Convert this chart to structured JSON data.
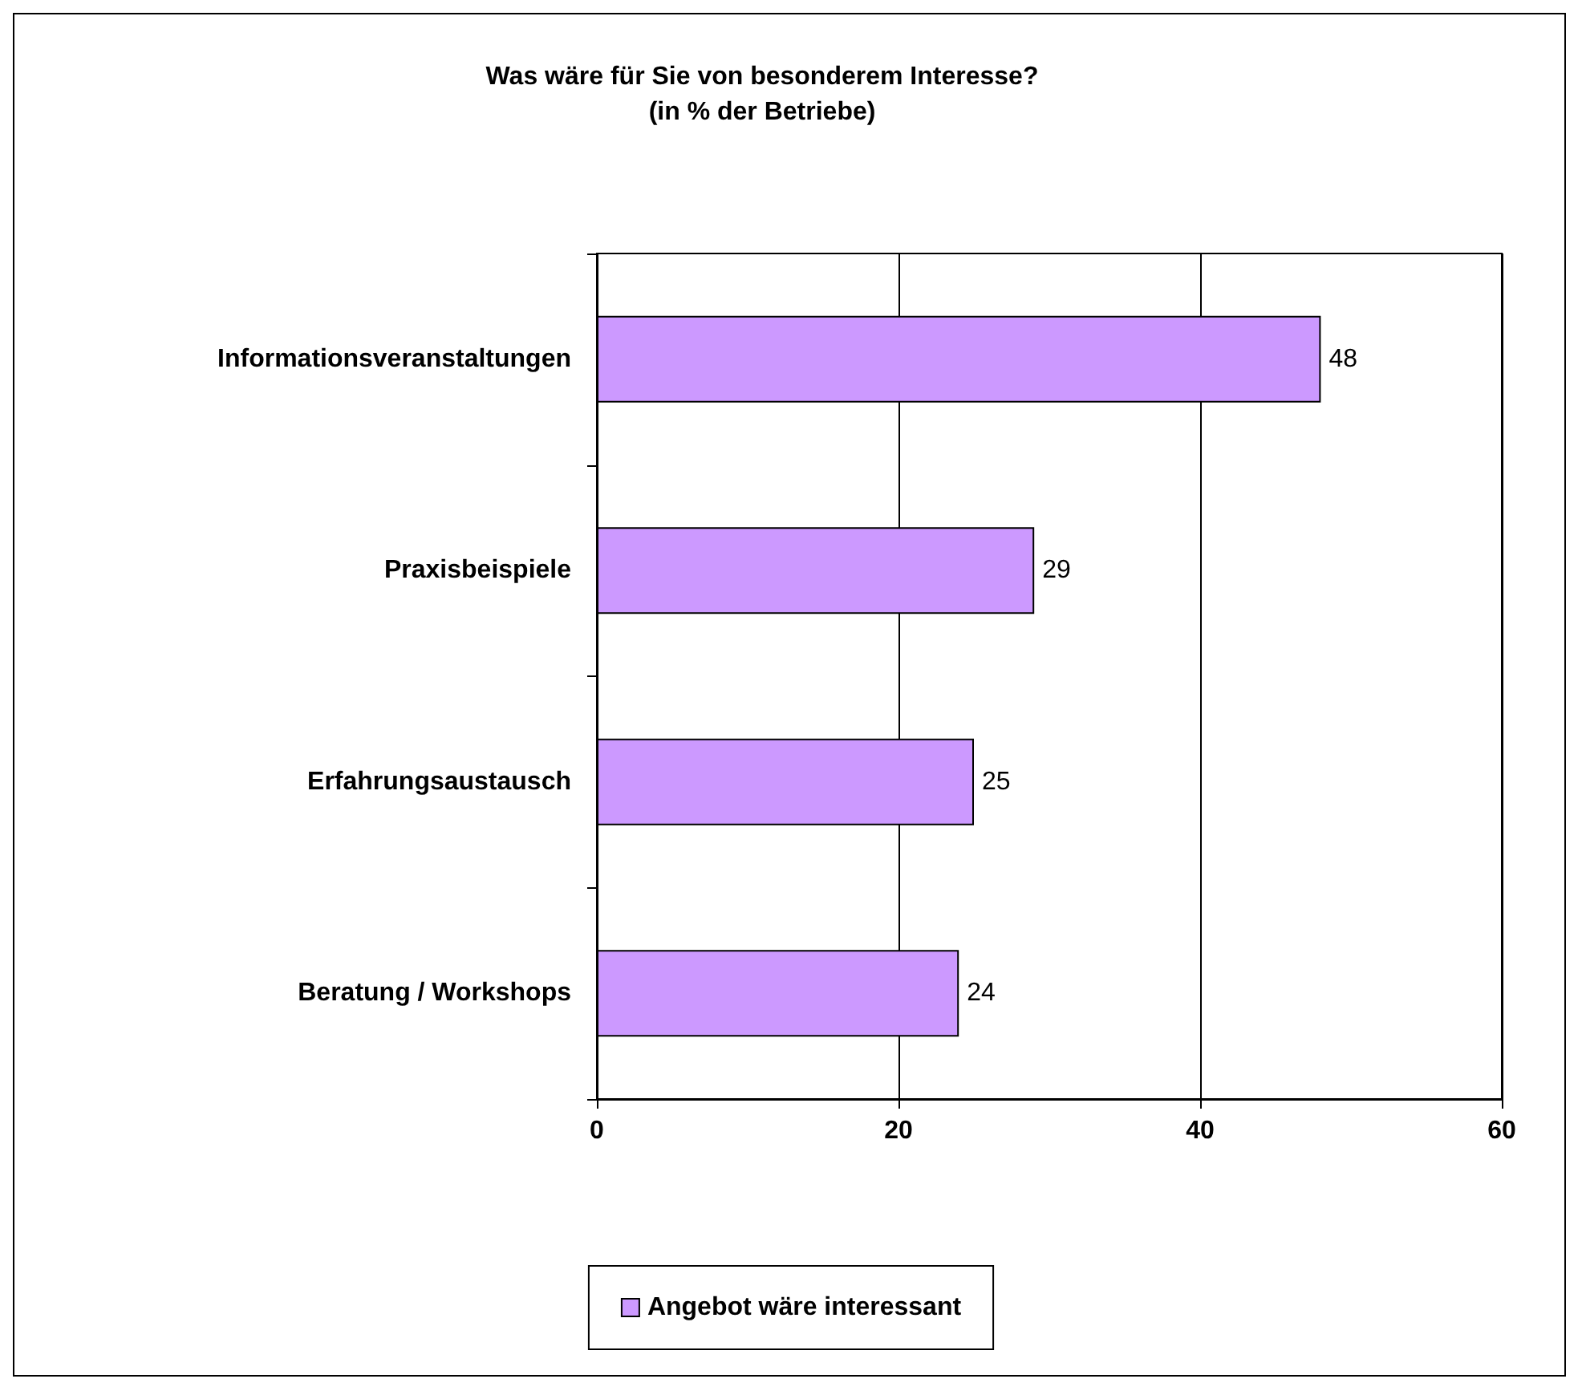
{
  "chart_data": {
    "type": "bar",
    "orientation": "horizontal",
    "title": "Was wäre für Sie von besonderem Interesse?\n(in % der Betriebe)",
    "categories": [
      "Informationsveranstaltungen",
      "Praxisbeispiele",
      "Erfahrungsaustausch",
      "Beratung / Workshops"
    ],
    "series": [
      {
        "name": "Angebot wäre interessant",
        "color": "#cc99ff",
        "values": [
          48,
          29,
          25,
          24
        ]
      }
    ],
    "xlim": [
      0,
      60
    ],
    "xticks": [
      0,
      20,
      40,
      60
    ],
    "grid": "x",
    "legend": "bottom",
    "data_labels": true
  }
}
